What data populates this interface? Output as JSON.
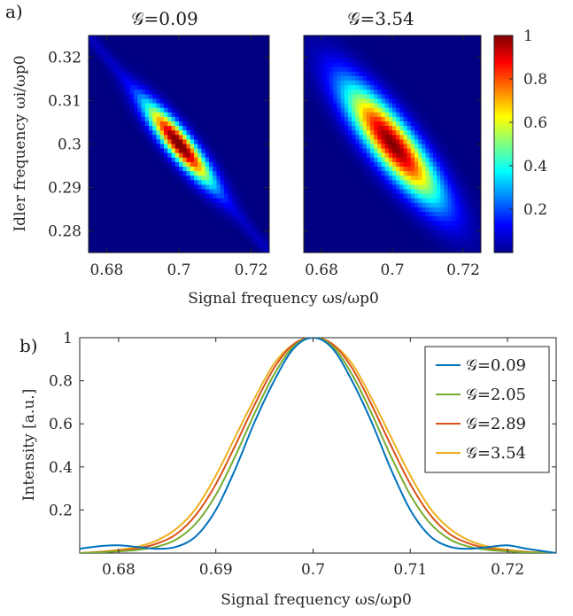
{
  "chart_data": [
    {
      "type": "heatmap",
      "panel_label": "a)",
      "xlabel": "Signal frequency ωs/ωp0",
      "ylabel": "Idler frequency ωi/ωp0",
      "xlim": [
        0.675,
        0.725
      ],
      "ylim": [
        0.275,
        0.325
      ],
      "xticks": [
        0.68,
        0.7,
        0.72
      ],
      "xtick_labels": [
        "0.68",
        "0.7",
        "0.72"
      ],
      "yticks": [
        0.28,
        0.29,
        0.3,
        0.31,
        0.32
      ],
      "ytick_labels": [
        "0.28",
        "0.29",
        "0.3",
        "0.31",
        "0.32"
      ],
      "colormap": "jet",
      "colorbar": {
        "ticks": [
          0.2,
          0.4,
          0.6,
          0.8,
          1
        ],
        "labels": [
          "0.2",
          "0.4",
          "0.6",
          "0.8",
          "1"
        ],
        "range": [
          0,
          1
        ]
      },
      "panels": [
        {
          "title": "𝒢=0.09",
          "center": [
            0.7,
            0.3
          ],
          "sigma_along": 0.0085,
          "sigma_across": 0.0021,
          "streak": 0.06
        },
        {
          "title": "𝒢=3.54",
          "center": [
            0.7,
            0.3
          ],
          "sigma_along": 0.0125,
          "sigma_across": 0.0036,
          "streak": 0.0
        }
      ]
    },
    {
      "type": "line",
      "panel_label": "b)",
      "xlabel": "Signal frequency ωs/ωp0",
      "ylabel": "Intensity [a.u.]",
      "xlim": [
        0.676,
        0.725
      ],
      "ylim": [
        0,
        1
      ],
      "xticks": [
        0.68,
        0.69,
        0.7,
        0.71,
        0.72
      ],
      "xtick_labels": [
        "0.68",
        "0.69",
        "0.7",
        "0.71",
        "0.72"
      ],
      "yticks": [
        0.2,
        0.4,
        0.6,
        0.8,
        1
      ],
      "ytick_labels": [
        "0.2",
        "0.4",
        "0.6",
        "0.8",
        "1"
      ],
      "legend_position": "top-right",
      "x": [
        0.676,
        0.678,
        0.68,
        0.682,
        0.684,
        0.686,
        0.688,
        0.69,
        0.692,
        0.694,
        0.696,
        0.698,
        0.7,
        0.702,
        0.704,
        0.706,
        0.708,
        0.71,
        0.712,
        0.714,
        0.716,
        0.718,
        0.72,
        0.722,
        0.725
      ],
      "series": [
        {
          "name": "𝒢=0.09",
          "color": "#0072bd",
          "values": [
            0.02,
            0.032,
            0.036,
            0.028,
            0.02,
            0.03,
            0.08,
            0.2,
            0.39,
            0.61,
            0.8,
            0.95,
            1.0,
            0.95,
            0.8,
            0.61,
            0.39,
            0.2,
            0.08,
            0.03,
            0.02,
            0.028,
            0.036,
            0.02,
            0.0
          ]
        },
        {
          "name": "𝒢=2.05",
          "color": "#77ac30",
          "values": [
            0.0,
            0.003,
            0.008,
            0.015,
            0.03,
            0.065,
            0.14,
            0.27,
            0.45,
            0.65,
            0.83,
            0.96,
            1.0,
            0.96,
            0.83,
            0.65,
            0.45,
            0.27,
            0.14,
            0.065,
            0.03,
            0.015,
            0.008,
            0.003,
            0.0
          ]
        },
        {
          "name": "𝒢=2.89",
          "color": "#d95319",
          "values": [
            0.0,
            0.004,
            0.011,
            0.022,
            0.045,
            0.09,
            0.18,
            0.32,
            0.5,
            0.69,
            0.86,
            0.97,
            1.0,
            0.97,
            0.86,
            0.69,
            0.5,
            0.32,
            0.18,
            0.09,
            0.045,
            0.022,
            0.011,
            0.004,
            0.0
          ]
        },
        {
          "name": "𝒢=3.54",
          "color": "#edb120",
          "values": [
            0.0,
            0.006,
            0.015,
            0.03,
            0.06,
            0.115,
            0.21,
            0.36,
            0.54,
            0.72,
            0.88,
            0.97,
            1.0,
            0.97,
            0.88,
            0.72,
            0.54,
            0.36,
            0.21,
            0.115,
            0.06,
            0.03,
            0.015,
            0.006,
            0.0
          ]
        }
      ]
    }
  ]
}
